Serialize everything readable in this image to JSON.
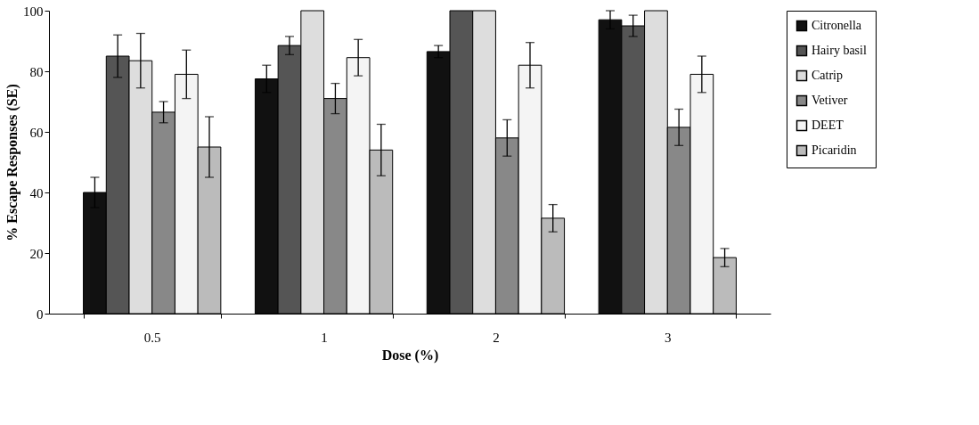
{
  "chart_data": {
    "type": "bar",
    "xlabel": "Dose (%)",
    "ylabel": "% Escape Responses (SE)",
    "categories": [
      "0.5",
      "1",
      "2",
      "3"
    ],
    "ylim": [
      0,
      100
    ],
    "yticks": [
      0,
      20,
      40,
      60,
      80,
      100
    ],
    "grid": false,
    "legend": "right",
    "series": [
      {
        "name": "Citronella",
        "color": "#111111",
        "values": [
          40,
          77.5,
          86.5,
          97
        ],
        "errors": [
          5,
          4.5,
          2,
          3
        ]
      },
      {
        "name": "Hairy basil",
        "color": "#555555",
        "values": [
          85,
          88.5,
          100,
          95
        ],
        "errors": [
          7,
          3,
          null,
          3.5
        ]
      },
      {
        "name": "Catrip",
        "color": "#dddddd",
        "values": [
          83.5,
          100,
          100,
          100
        ],
        "errors": [
          9,
          null,
          null,
          null
        ]
      },
      {
        "name": "Vetiver",
        "color": "#888888",
        "values": [
          66.5,
          71,
          58,
          61.5
        ],
        "errors": [
          3.5,
          5,
          6,
          6
        ]
      },
      {
        "name": "DEET",
        "color": "#f4f4f4",
        "values": [
          79,
          84.5,
          82,
          79
        ],
        "errors": [
          8,
          6,
          7.5,
          6
        ]
      },
      {
        "name": "Picaridin",
        "color": "#bbbbbb",
        "values": [
          55,
          54,
          31.5,
          18.5
        ],
        "errors": [
          10,
          8.5,
          4.5,
          3
        ]
      }
    ]
  }
}
